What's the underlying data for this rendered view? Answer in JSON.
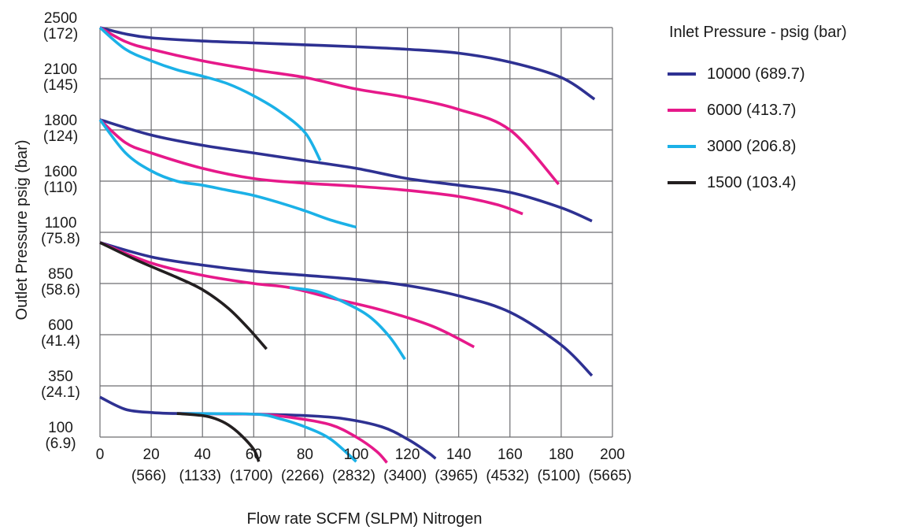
{
  "chart_data": {
    "type": "line",
    "xlabel": "Flow rate SCFM (SLPM) Nitrogen",
    "ylabel": "Outlet Pressure psig (bar)",
    "xlim": [
      0,
      200
    ],
    "x_ticks": [
      {
        "value": 0,
        "label": "0",
        "sub": ""
      },
      {
        "value": 20,
        "label": "20",
        "sub": "(566)"
      },
      {
        "value": 40,
        "label": "40",
        "sub": "(1133)"
      },
      {
        "value": 60,
        "label": "60",
        "sub": "(1700)"
      },
      {
        "value": 80,
        "label": "80",
        "sub": "(2266)"
      },
      {
        "value": 100,
        "label": "100",
        "sub": "(2832)"
      },
      {
        "value": 120,
        "label": "120",
        "sub": "(3400)"
      },
      {
        "value": 140,
        "label": "140",
        "sub": "(3965)"
      },
      {
        "value": 160,
        "label": "160",
        "sub": "(4532)"
      },
      {
        "value": 180,
        "label": "180",
        "sub": "(5100)"
      },
      {
        "value": 200,
        "label": "200",
        "sub": "(5665)"
      }
    ],
    "y_ticks": [
      {
        "psig": "2500",
        "bar": "(172)"
      },
      {
        "psig": "2100",
        "bar": "(145)"
      },
      {
        "psig": "1800",
        "bar": "(124)"
      },
      {
        "psig": "1600",
        "bar": "(110)"
      },
      {
        "psig": "1100",
        "bar": "(75.8)"
      },
      {
        "psig": "850",
        "bar": "(58.6)"
      },
      {
        "psig": "600",
        "bar": "(41.4)"
      },
      {
        "psig": "350",
        "bar": "(24.1)"
      },
      {
        "psig": "100",
        "bar": "(6.9)"
      }
    ],
    "grid": true,
    "legend": {
      "title": "Inlet Pressure - psig (bar)",
      "position": "top-right",
      "entries": [
        {
          "label": "10000 (689.7)",
          "color": "#2e3192"
        },
        {
          "label": "6000 (413.7)",
          "color": "#e6198a"
        },
        {
          "label": "3000 (206.8)",
          "color": "#1bb1e7"
        },
        {
          "label": "1500 (103.4)",
          "color": "#231f20"
        }
      ]
    },
    "series": [
      {
        "group": 1,
        "inlet": "10000",
        "color": "#2e3192",
        "points": [
          [
            0,
            2500
          ],
          [
            10,
            2450
          ],
          [
            20,
            2420
          ],
          [
            40,
            2395
          ],
          [
            60,
            2380
          ],
          [
            80,
            2365
          ],
          [
            100,
            2350
          ],
          [
            120,
            2330
          ],
          [
            140,
            2300
          ],
          [
            160,
            2230
          ],
          [
            180,
            2110
          ],
          [
            193,
            1980
          ]
        ]
      },
      {
        "group": 1,
        "inlet": "6000",
        "color": "#e6198a",
        "points": [
          [
            0,
            2500
          ],
          [
            10,
            2390
          ],
          [
            20,
            2330
          ],
          [
            40,
            2240
          ],
          [
            60,
            2170
          ],
          [
            80,
            2110
          ],
          [
            100,
            2040
          ],
          [
            120,
            1990
          ],
          [
            140,
            1920
          ],
          [
            160,
            1800
          ],
          [
            179,
            1570
          ]
        ]
      },
      {
        "group": 1,
        "inlet": "3000",
        "color": "#1bb1e7",
        "points": [
          [
            0,
            2500
          ],
          [
            10,
            2330
          ],
          [
            20,
            2240
          ],
          [
            30,
            2170
          ],
          [
            40,
            2120
          ],
          [
            50,
            2070
          ],
          [
            60,
            2000
          ],
          [
            70,
            1910
          ],
          [
            80,
            1790
          ],
          [
            86,
            1680
          ]
        ]
      },
      {
        "group": 2,
        "inlet": "10000",
        "color": "#2e3192",
        "points": [
          [
            0,
            1860
          ],
          [
            20,
            1780
          ],
          [
            40,
            1740
          ],
          [
            60,
            1710
          ],
          [
            80,
            1680
          ],
          [
            100,
            1650
          ],
          [
            120,
            1610
          ],
          [
            140,
            1560
          ],
          [
            160,
            1490
          ],
          [
            180,
            1340
          ],
          [
            192,
            1210
          ]
        ]
      },
      {
        "group": 2,
        "inlet": "6000",
        "color": "#e6198a",
        "points": [
          [
            0,
            1860
          ],
          [
            10,
            1750
          ],
          [
            20,
            1710
          ],
          [
            40,
            1650
          ],
          [
            60,
            1610
          ],
          [
            80,
            1580
          ],
          [
            100,
            1550
          ],
          [
            120,
            1510
          ],
          [
            140,
            1450
          ],
          [
            155,
            1370
          ],
          [
            165,
            1280
          ]
        ]
      },
      {
        "group": 2,
        "inlet": "3000",
        "color": "#1bb1e7",
        "points": [
          [
            0,
            1860
          ],
          [
            10,
            1710
          ],
          [
            20,
            1640
          ],
          [
            30,
            1600
          ],
          [
            40,
            1560
          ],
          [
            50,
            1510
          ],
          [
            60,
            1460
          ],
          [
            70,
            1390
          ],
          [
            80,
            1310
          ],
          [
            90,
            1220
          ],
          [
            100,
            1150
          ]
        ]
      },
      {
        "group": 3,
        "inlet": "10000",
        "color": "#2e3192",
        "points": [
          [
            0,
            1050
          ],
          [
            20,
            980
          ],
          [
            40,
            940
          ],
          [
            60,
            910
          ],
          [
            80,
            890
          ],
          [
            100,
            870
          ],
          [
            120,
            840
          ],
          [
            140,
            790
          ],
          [
            160,
            710
          ],
          [
            180,
            550
          ],
          [
            192,
            400
          ]
        ]
      },
      {
        "group": 3,
        "inlet": "6000",
        "color": "#e6198a",
        "points": [
          [
            0,
            1050
          ],
          [
            20,
            950
          ],
          [
            40,
            890
          ],
          [
            60,
            850
          ],
          [
            74,
            830
          ],
          [
            90,
            780
          ],
          [
            110,
            720
          ],
          [
            130,
            640
          ],
          [
            146,
            540
          ]
        ]
      },
      {
        "group": 3,
        "inlet": "3000",
        "color": "#1bb1e7",
        "points": [
          [
            74,
            830
          ],
          [
            85,
            810
          ],
          [
            95,
            760
          ],
          [
            105,
            690
          ],
          [
            113,
            590
          ],
          [
            119,
            480
          ]
        ]
      },
      {
        "group": 3,
        "inlet": "1500",
        "color": "#231f20",
        "points": [
          [
            0,
            1050
          ],
          [
            15,
            960
          ],
          [
            30,
            880
          ],
          [
            40,
            820
          ],
          [
            50,
            730
          ],
          [
            58,
            630
          ],
          [
            65,
            530
          ]
        ]
      },
      {
        "group": 4,
        "inlet": "10000",
        "color": "#2e3192",
        "points": [
          [
            0,
            295
          ],
          [
            10,
            235
          ],
          [
            20,
            220
          ],
          [
            30,
            215
          ],
          [
            60,
            212
          ],
          [
            80,
            205
          ],
          [
            95,
            190
          ],
          [
            110,
            150
          ],
          [
            120,
            90
          ],
          [
            128,
            25
          ],
          [
            131,
            -5
          ]
        ]
      },
      {
        "group": 4,
        "inlet": "6000",
        "color": "#e6198a",
        "points": [
          [
            30,
            215
          ],
          [
            60,
            212
          ],
          [
            75,
            195
          ],
          [
            90,
            160
          ],
          [
            100,
            100
          ],
          [
            108,
            30
          ],
          [
            112,
            -25
          ]
        ]
      },
      {
        "group": 4,
        "inlet": "3000",
        "color": "#1bb1e7",
        "points": [
          [
            30,
            215
          ],
          [
            60,
            212
          ],
          [
            70,
            190
          ],
          [
            80,
            150
          ],
          [
            90,
            90
          ],
          [
            100,
            -20
          ]
        ]
      },
      {
        "group": 4,
        "inlet": "1500",
        "color": "#231f20",
        "points": [
          [
            30,
            215
          ],
          [
            40,
            205
          ],
          [
            45,
            190
          ],
          [
            50,
            160
          ],
          [
            55,
            110
          ],
          [
            60,
            40
          ],
          [
            62,
            -20
          ]
        ]
      }
    ]
  }
}
